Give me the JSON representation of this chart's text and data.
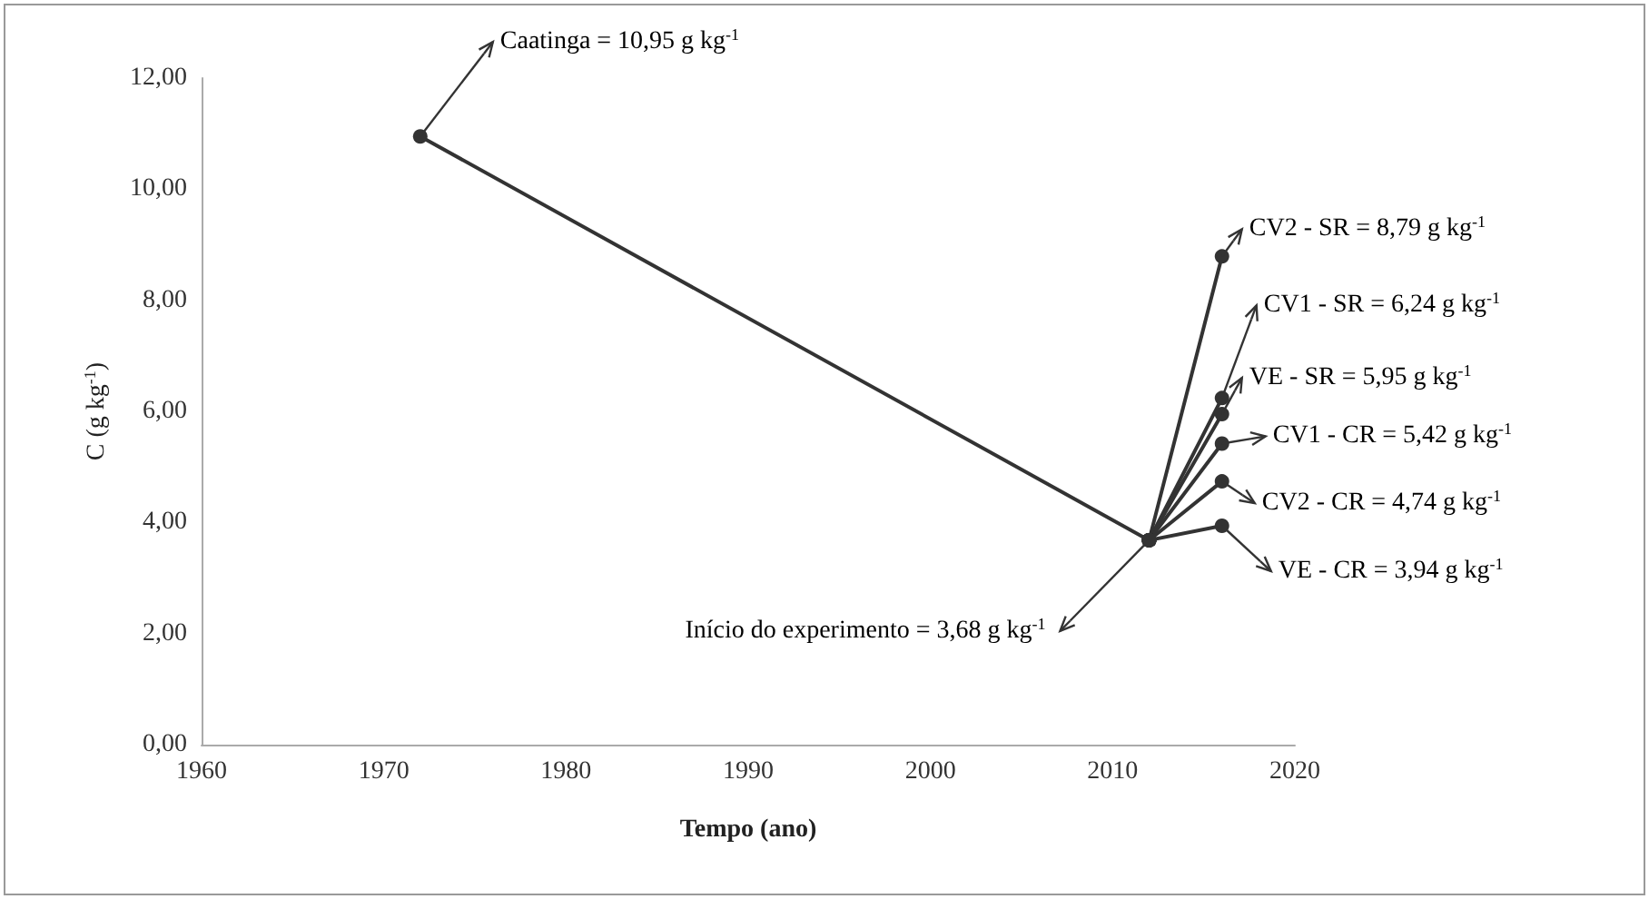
{
  "chart_data": {
    "type": "line",
    "xlabel": "Tempo (ano)",
    "ylabel": "C (g kg$^{-1}$)",
    "series": [
      {
        "color": "#333333",
        "x": [
          1972,
          2012
        ],
        "values": [
          10.95,
          3.68
        ]
      },
      {
        "color": "#333333",
        "x": [
          2012,
          2016
        ],
        "values": [
          3.68,
          8.79
        ]
      },
      {
        "color": "#333333",
        "x": [
          2012,
          2016
        ],
        "values": [
          3.68,
          6.24
        ]
      },
      {
        "color": "#333333",
        "x": [
          2012,
          2016
        ],
        "values": [
          3.68,
          5.95
        ]
      },
      {
        "color": "#333333",
        "x": [
          2012,
          2016
        ],
        "values": [
          3.68,
          5.42
        ]
      },
      {
        "color": "#333333",
        "x": [
          2012,
          2016
        ],
        "values": [
          3.68,
          4.74
        ]
      },
      {
        "color": "#333333",
        "x": [
          2012,
          2016
        ],
        "values": [
          3.68,
          3.94
        ]
      }
    ],
    "xlim": [
      1960,
      2020
    ],
    "xticks": [
      1960,
      1970,
      1980,
      1990,
      2000,
      2010,
      2020
    ],
    "ylim": [
      0,
      12
    ],
    "yticks": [
      {
        "value": 0,
        "label": "0,00"
      },
      {
        "value": 2,
        "label": "2,00"
      },
      {
        "value": 4,
        "label": "4,00"
      },
      {
        "value": 6,
        "label": "6,00"
      },
      {
        "value": 8,
        "label": "8,00"
      },
      {
        "value": 10,
        "label": "10,00"
      },
      {
        "value": 12,
        "label": "12,00"
      }
    ],
    "grid": false,
    "marker": "circle",
    "line_style": "solid",
    "annotations": [
      {
        "text": "Caatinga = 10,95 g kg$^{-1}$",
        "x": 1972,
        "y": 10.95
      },
      {
        "text": "Início do experimento = 3,68 g kg$^{-1}$",
        "x": 2012,
        "y": 3.68
      },
      {
        "text": "CV2 - SR = 8,79 g kg$^{-1}$",
        "x": 2016,
        "y": 8.79
      },
      {
        "text": "CV1 - SR = 6,24 g kg$^{-1}$",
        "x": 2016,
        "y": 6.24
      },
      {
        "text": "VE - SR = 5,95 g kg$^{-1}$",
        "x": 2016,
        "y": 5.95
      },
      {
        "text": "CV1 - CR = 5,42 g kg$^{-1}$",
        "x": 2016,
        "y": 5.42
      },
      {
        "text": "CV2 - CR = 4,74 g kg$^{-1}$",
        "x": 2016,
        "y": 4.74
      },
      {
        "text": "VE - CR = 3,94 g kg$^{-1}$",
        "x": 2016,
        "y": 3.94
      }
    ]
  }
}
